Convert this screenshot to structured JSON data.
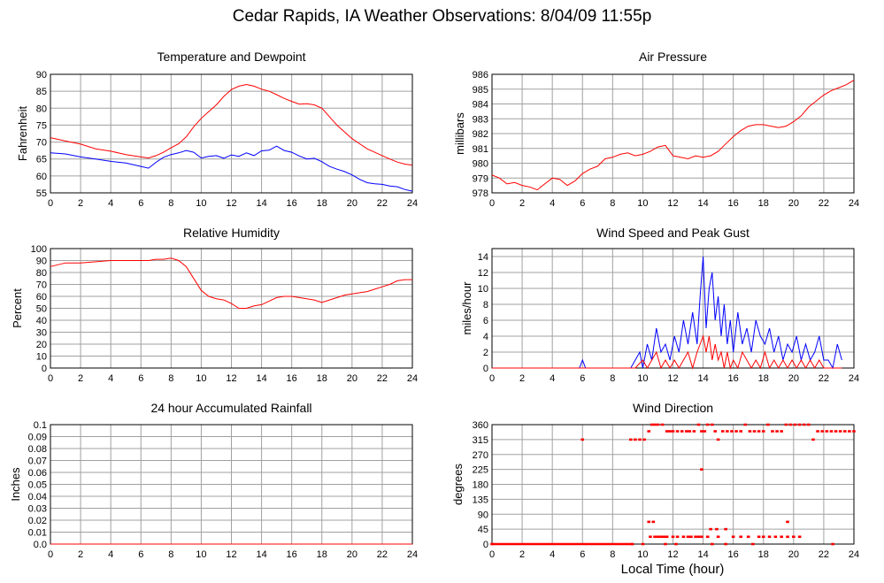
{
  "page": {
    "title": "Cedar Rapids, IA Weather Observations: 8/04/09 11:55p",
    "xlabel": "Local Time (hour)"
  },
  "colors": {
    "primary": "#ff0000",
    "secondary": "#0000ff",
    "grid": "#a0a0a0",
    "frame": "#000000"
  },
  "chart_data": [
    {
      "id": "temp",
      "type": "line",
      "title": "Temperature and Dewpoint",
      "ylabel": "Fahrenheit",
      "xlim": [
        0,
        24
      ],
      "ylim": [
        55,
        90
      ],
      "xticks": [
        0,
        2,
        4,
        6,
        8,
        10,
        12,
        14,
        16,
        18,
        20,
        22,
        24
      ],
      "yticks": [
        55,
        60,
        65,
        70,
        75,
        80,
        85,
        90
      ],
      "grid": true,
      "series": [
        {
          "color": "#ff0000",
          "x": [
            0,
            1,
            2,
            3,
            4,
            5,
            6,
            6.5,
            7,
            7.5,
            8,
            8.5,
            9,
            9.5,
            10,
            10.5,
            11,
            11.5,
            12,
            12.5,
            13,
            13.5,
            14,
            14.5,
            15,
            15.5,
            16,
            16.5,
            17,
            17.5,
            18,
            18.5,
            19,
            19.5,
            20,
            20.5,
            21,
            21.5,
            22,
            22.5,
            23,
            23.5,
            24
          ],
          "y": [
            71.3,
            70.3,
            69.4,
            68.0,
            67.3,
            66.3,
            65.6,
            65.3,
            66.0,
            67.0,
            68.3,
            69.5,
            71.5,
            74.5,
            77.0,
            79.0,
            81.0,
            83.5,
            85.5,
            86.5,
            87.0,
            86.5,
            85.6,
            85.0,
            84.0,
            82.9,
            82.0,
            81.2,
            81.3,
            81.0,
            80.0,
            77.5,
            75.0,
            73.0,
            71.0,
            69.5,
            68.0,
            67.0,
            66.0,
            65.0,
            64.1,
            63.5,
            63.2
          ]
        },
        {
          "color": "#0000ff",
          "x": [
            0,
            1,
            2,
            3,
            4,
            5,
            6,
            6.5,
            7,
            7.5,
            8,
            8.5,
            9,
            9.5,
            10,
            10.5,
            11,
            11.5,
            12,
            12.5,
            13,
            13.5,
            14,
            14.5,
            15,
            15.5,
            16,
            16.5,
            17,
            17.5,
            18,
            18.5,
            19,
            19.5,
            20,
            20.5,
            21,
            21.5,
            22,
            22.5,
            23,
            23.5,
            24
          ],
          "y": [
            66.8,
            66.5,
            65.6,
            65.0,
            64.3,
            63.8,
            62.8,
            62.3,
            64.0,
            65.5,
            66.3,
            66.8,
            67.5,
            67.0,
            65.3,
            65.8,
            66.0,
            65.2,
            66.2,
            65.8,
            66.8,
            66.0,
            67.4,
            67.6,
            68.8,
            67.5,
            67.0,
            65.9,
            65.0,
            65.2,
            64.2,
            62.8,
            62.0,
            61.3,
            60.3,
            59.0,
            58.0,
            57.7,
            57.5,
            57.0,
            56.8,
            56.0,
            55.5
          ]
        }
      ]
    },
    {
      "id": "pressure",
      "type": "line",
      "title": "Air Pressure",
      "ylabel": "millibars",
      "xlim": [
        0,
        24
      ],
      "ylim": [
        978,
        986
      ],
      "xticks": [
        0,
        2,
        4,
        6,
        8,
        10,
        12,
        14,
        16,
        18,
        20,
        22,
        24
      ],
      "yticks": [
        978,
        979,
        980,
        981,
        982,
        983,
        984,
        985,
        986
      ],
      "grid": true,
      "series": [
        {
          "color": "#ff0000",
          "x": [
            0,
            0.5,
            1,
            1.5,
            2,
            2.5,
            3,
            3.5,
            4,
            4.5,
            5,
            5.5,
            6,
            6.5,
            7,
            7.5,
            8,
            8.5,
            9,
            9.5,
            10,
            10.5,
            11,
            11.5,
            12,
            12.5,
            13,
            13.5,
            14,
            14.5,
            15,
            15.5,
            16,
            16.5,
            17,
            17.5,
            18,
            18.5,
            19,
            19.5,
            20,
            20.5,
            21,
            21.5,
            22,
            22.5,
            23,
            23.5,
            24
          ],
          "y": [
            979.2,
            979.0,
            978.6,
            978.7,
            978.5,
            978.4,
            978.2,
            978.6,
            979.0,
            978.9,
            978.5,
            978.8,
            979.3,
            979.6,
            979.8,
            980.3,
            980.4,
            980.6,
            980.7,
            980.5,
            980.6,
            980.8,
            981.1,
            981.2,
            980.5,
            980.4,
            980.3,
            980.5,
            980.4,
            980.5,
            980.8,
            981.3,
            981.8,
            982.2,
            982.5,
            982.6,
            982.6,
            982.5,
            982.4,
            982.5,
            982.8,
            983.2,
            983.8,
            984.2,
            984.6,
            984.9,
            985.1,
            985.3,
            985.6
          ]
        }
      ]
    },
    {
      "id": "humidity",
      "type": "line",
      "title": "Relative Humidity",
      "ylabel": "Percent",
      "xlim": [
        0,
        24
      ],
      "ylim": [
        0,
        100
      ],
      "xticks": [
        0,
        2,
        4,
        6,
        8,
        10,
        12,
        14,
        16,
        18,
        20,
        22,
        24
      ],
      "yticks": [
        0,
        10,
        20,
        30,
        40,
        50,
        60,
        70,
        80,
        90,
        100
      ],
      "grid": true,
      "series": [
        {
          "color": "#ff0000",
          "x": [
            0,
            1,
            2,
            3,
            4,
            5,
            6,
            6.5,
            7,
            7.5,
            8,
            8.5,
            9,
            9.5,
            10,
            10.5,
            11,
            11.5,
            12,
            12.5,
            13,
            13.5,
            14,
            14.5,
            15,
            15.5,
            16,
            16.5,
            17,
            17.5,
            18,
            18.5,
            19,
            19.5,
            20,
            20.5,
            21,
            21.5,
            22,
            22.5,
            23,
            23.5,
            24
          ],
          "y": [
            85,
            88,
            88,
            89,
            90,
            90,
            90,
            90,
            91,
            91,
            92,
            90,
            85,
            75,
            65,
            60,
            58,
            57,
            54,
            50,
            50,
            52,
            53,
            56,
            59,
            60,
            60,
            59,
            58,
            57,
            55,
            57,
            59,
            61,
            62,
            63,
            64,
            66,
            68,
            70,
            73,
            74,
            74
          ]
        }
      ]
    },
    {
      "id": "wind",
      "type": "line",
      "title": "Wind Speed and Peak Gust",
      "ylabel": "miles/hour",
      "xlim": [
        0,
        24
      ],
      "ylim": [
        0,
        15
      ],
      "xticks": [
        0,
        2,
        4,
        6,
        8,
        10,
        12,
        14,
        16,
        18,
        20,
        22,
        24
      ],
      "yticks": [
        0,
        2,
        4,
        6,
        8,
        10,
        12,
        14
      ],
      "grid": true,
      "series": [
        {
          "color": "#0000ff",
          "x": [
            0,
            5.8,
            6,
            6.2,
            9.2,
            9.5,
            9.8,
            10,
            10.3,
            10.6,
            10.9,
            11.2,
            11.5,
            11.8,
            12.1,
            12.4,
            12.7,
            13,
            13.3,
            13.6,
            13.8,
            14,
            14.2,
            14.4,
            14.6,
            14.8,
            15,
            15.2,
            15.4,
            15.6,
            15.8,
            16,
            16.3,
            16.6,
            16.9,
            17.2,
            17.5,
            17.8,
            18.1,
            18.4,
            18.7,
            19,
            19.3,
            19.6,
            19.9,
            20.2,
            20.5,
            20.8,
            21.1,
            21.4,
            21.7,
            22,
            22.3,
            22.6,
            22.9,
            23.2
          ],
          "y": [
            0,
            0,
            1,
            0,
            0,
            1,
            2,
            0,
            3,
            1,
            5,
            2,
            3,
            1,
            4,
            2,
            6,
            3,
            7,
            3,
            9,
            14,
            5,
            10,
            12,
            6,
            9,
            4,
            8,
            3,
            6,
            2,
            7,
            3,
            5,
            2,
            6,
            4,
            3,
            5,
            2,
            4,
            1,
            3,
            2,
            4,
            1,
            3,
            1,
            2,
            4,
            1,
            1,
            0,
            3,
            1
          ]
        },
        {
          "color": "#ff0000",
          "x": [
            0,
            9.5,
            10,
            10.3,
            10.6,
            10.9,
            11.2,
            11.5,
            11.8,
            12.1,
            12.4,
            12.7,
            13,
            13.3,
            13.6,
            13.8,
            14,
            14.2,
            14.4,
            14.6,
            14.8,
            15,
            15.2,
            15.4,
            15.6,
            15.8,
            16,
            16.3,
            16.6,
            16.9,
            17.2,
            17.5,
            17.8,
            18.1,
            18.4,
            18.7,
            19,
            19.3,
            19.6,
            19.9,
            20.2,
            20.5,
            20.8,
            21.1,
            21.4,
            21.7,
            22,
            23.2
          ],
          "y": [
            0,
            0,
            1,
            0,
            1,
            2,
            0,
            1,
            0,
            1,
            0,
            1,
            2,
            0,
            2,
            3,
            4,
            2,
            4,
            1,
            3,
            1,
            2,
            0,
            2,
            0,
            1,
            0,
            2,
            1,
            0,
            1,
            0,
            2,
            0,
            1,
            0,
            1,
            0,
            1,
            0,
            1,
            0,
            1,
            0,
            1,
            0,
            0
          ]
        }
      ]
    },
    {
      "id": "rain",
      "type": "line",
      "title": "24 hour Accumulated Rainfall",
      "ylabel": "Inches",
      "xlim": [
        0,
        24
      ],
      "ylim": [
        0,
        0.1
      ],
      "xticks": [
        0,
        2,
        4,
        6,
        8,
        10,
        12,
        14,
        16,
        18,
        20,
        22,
        24
      ],
      "yticks": [
        "0.0",
        "0.01",
        "0.02",
        "0.03",
        "0.04",
        "0.05",
        "0.06",
        "0.07",
        "0.08",
        "0.09",
        "0.1"
      ],
      "grid": true,
      "series": [
        {
          "color": "#ff0000",
          "x": [
            0,
            24
          ],
          "y": [
            0,
            0
          ]
        }
      ]
    },
    {
      "id": "direction",
      "type": "scatter",
      "title": "Wind Direction",
      "ylabel": "degrees",
      "xlim": [
        0,
        24
      ],
      "ylim": [
        0,
        360
      ],
      "xticks": [
        0,
        2,
        4,
        6,
        8,
        10,
        12,
        14,
        16,
        18,
        20,
        22,
        24
      ],
      "yticks": [
        0,
        45,
        90,
        135,
        180,
        225,
        270,
        315,
        360
      ],
      "grid": true,
      "series": [
        {
          "color": "#ff0000",
          "x": [
            6.0,
            9.2,
            9.5,
            9.8,
            10.1,
            10.4,
            10.6,
            10.8,
            11.0,
            11.3,
            11.6,
            11.8,
            12.0,
            12.3,
            12.6,
            12.9,
            13.1,
            13.4,
            13.7,
            13.9,
            14.1,
            14.3,
            14.6,
            14.8,
            15.0,
            15.3,
            15.6,
            15.9,
            16.2,
            16.5,
            16.8,
            17.1,
            17.4,
            17.7,
            18.0,
            18.3,
            18.6,
            18.9,
            19.2,
            19.5,
            19.8,
            20.1,
            20.4,
            20.7,
            21.0,
            21.3,
            21.6,
            21.9,
            22.2,
            22.5,
            22.8,
            23.1,
            23.4,
            23.7,
            24.0,
            10.5,
            10.8,
            11.0,
            11.2,
            11.4,
            11.6,
            12.0,
            12.3,
            12.7,
            13.0,
            13.2,
            13.5,
            13.7,
            13.9,
            14.3,
            14.5,
            15.0,
            15.5,
            16.0,
            16.5,
            17.0,
            17.7,
            18.0,
            18.4,
            18.8,
            19.2,
            19.6,
            20.0,
            20.4,
            22.6,
            13.9,
            10.4,
            10.7,
            14.9,
            19.6,
            10.0,
            11.5,
            12.2,
            14.6,
            15.5,
            17.3
          ],
          "y": [
            315,
            315,
            315,
            315,
            315,
            340,
            360,
            360,
            360,
            360,
            340,
            340,
            340,
            340,
            340,
            340,
            340,
            340,
            360,
            340,
            340,
            360,
            360,
            340,
            315,
            340,
            340,
            340,
            340,
            340,
            360,
            340,
            340,
            340,
            340,
            360,
            340,
            340,
            340,
            360,
            360,
            360,
            360,
            360,
            360,
            315,
            340,
            340,
            340,
            340,
            340,
            340,
            340,
            340,
            340,
            22,
            22,
            22,
            22,
            22,
            22,
            22,
            22,
            22,
            22,
            22,
            22,
            22,
            22,
            22,
            45,
            22,
            45,
            22,
            22,
            22,
            22,
            22,
            22,
            22,
            22,
            22,
            22,
            22,
            0,
            225,
            67,
            67,
            45,
            67,
            0,
            0,
            0,
            0,
            0,
            0
          ]
        },
        {
          "color": "#ff0000",
          "x": [
            0,
            9.3
          ],
          "y": [
            0,
            0
          ],
          "note": ""
        }
      ]
    }
  ]
}
